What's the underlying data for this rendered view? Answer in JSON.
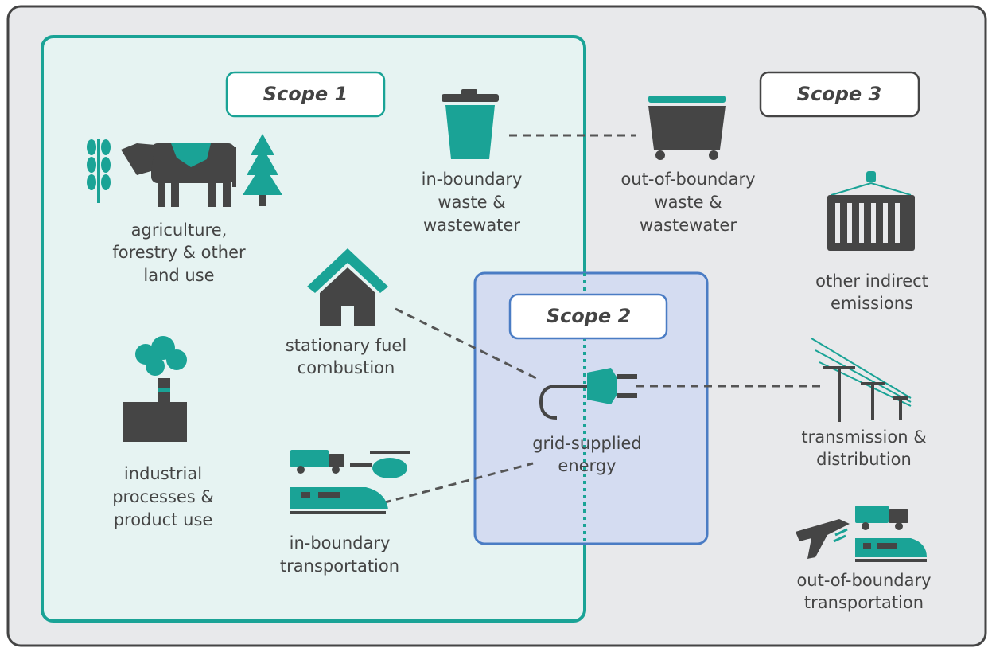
{
  "scopes": [
    "Scope 1",
    "Scope 2",
    "Scope 3"
  ],
  "nodes": [
    {
      "lines": [
        "agriculture,",
        "forestry & other",
        "land use"
      ]
    },
    {
      "lines": [
        "industrial",
        "processes &",
        "product use"
      ]
    },
    {
      "lines": [
        "stationary fuel",
        "combustion"
      ]
    },
    {
      "lines": [
        "in-boundary",
        "transportation"
      ]
    },
    {
      "lines": [
        "in-boundary",
        "waste &",
        "wastewater"
      ]
    },
    {
      "lines": [
        "out-of-boundary",
        "waste &",
        "wastewater"
      ]
    },
    {
      "lines": [
        "grid-supplied",
        "energy"
      ]
    },
    {
      "lines": [
        "other indirect",
        "emissions"
      ]
    },
    {
      "lines": [
        "transmission &",
        "distribution"
      ]
    },
    {
      "lines": [
        "out-of-boundary",
        "transportation"
      ]
    }
  ]
}
